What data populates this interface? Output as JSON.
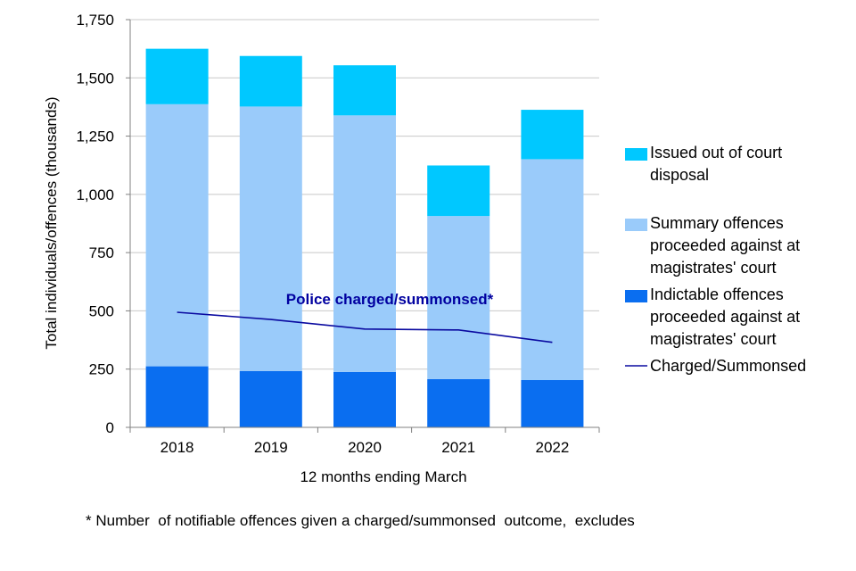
{
  "chart_data": {
    "type": "bar",
    "stacked": true,
    "title": "",
    "xlabel": "12 months ending March",
    "ylabel": "Total individuals/offences (thousands)",
    "ylim": [
      0,
      1750
    ],
    "yticks": [
      0,
      250,
      500,
      750,
      1000,
      1250,
      1500,
      1750
    ],
    "ytick_labels": [
      "0",
      "250",
      "500",
      "750",
      "1,000",
      "1,250",
      "1,500",
      "1,750"
    ],
    "grid": "horizontal",
    "categories": [
      "2018",
      "2019",
      "2020",
      "2021",
      "2022"
    ],
    "series": [
      {
        "name": "Indictable offences proceeded against at magistrates' court",
        "color": "#0A6EF0",
        "values": [
          262,
          242,
          238,
          207,
          203
        ]
      },
      {
        "name": "Summary offences proceeded against at magistrates' court",
        "color": "#9ACBFA",
        "values": [
          1125,
          1135,
          1101,
          700,
          948
        ]
      },
      {
        "name": "Issued out of court disposal",
        "color": "#00C8FF",
        "values": [
          238,
          217,
          215,
          217,
          212
        ]
      }
    ],
    "line_series": [
      {
        "name": "Charged/Summonsed",
        "color": "#0A0AA0",
        "values": [
          494,
          463,
          422,
          418,
          365
        ]
      }
    ],
    "legend": {
      "placement": "right",
      "entries": [
        {
          "series": "Issued out of court disposal",
          "lines": [
            "Issued out of court",
            "disposal"
          ],
          "color": "#00C8FF",
          "kind": "box"
        },
        {
          "series": "Summary offences proceeded against at magistrates' court",
          "lines": [
            "Summary offences",
            "proceeded against at",
            "magistrates' court"
          ],
          "color": "#9ACBFA",
          "kind": "box"
        },
        {
          "series": "Indictable offences proceeded against at magistrates' court",
          "lines": [
            "Indictable offences",
            "proceeded against at",
            "magistrates' court"
          ],
          "color": "#0A6EF0",
          "kind": "box"
        },
        {
          "series": "Charged/Summonsed",
          "lines": [
            "Charged/Summonsed"
          ],
          "color": "#0A0AA0",
          "kind": "line"
        }
      ]
    },
    "annotations": [
      "Police charged/summonsed*"
    ],
    "footnote": "* Number  of notifiable offences given a charged/summonsed  outcome,  excludes"
  }
}
